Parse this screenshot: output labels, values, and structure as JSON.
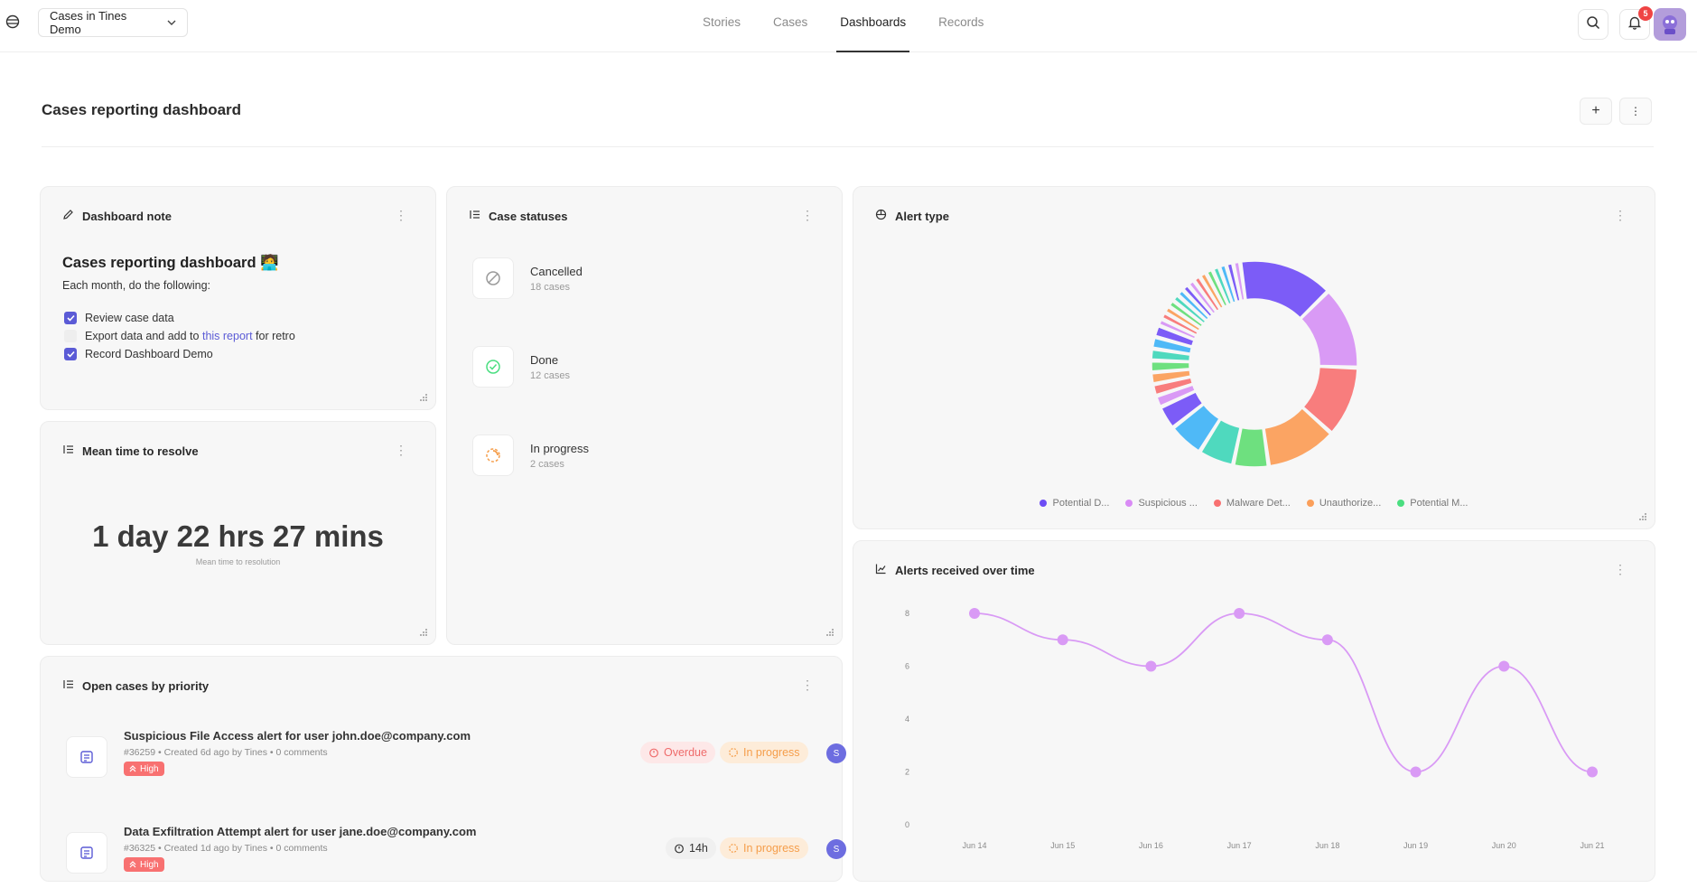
{
  "header": {
    "workspace": "Cases in Tines Demo",
    "nav": [
      "Stories",
      "Cases",
      "Dashboards",
      "Records"
    ],
    "active_nav": "Dashboards",
    "notification_count": "5"
  },
  "page": {
    "title": "Cases reporting dashboard"
  },
  "note_card": {
    "title": "Dashboard note",
    "heading": "Cases reporting dashboard 🧑‍💻",
    "subtitle": "Each month, do the following:",
    "items": [
      {
        "text": "Review case data",
        "checked": true
      },
      {
        "prefix": "Export data and add to ",
        "link": "this report",
        "suffix": " for retro",
        "checked": false
      },
      {
        "text": "Record Dashboard Demo",
        "checked": true
      }
    ]
  },
  "statuses_card": {
    "title": "Case statuses",
    "items": [
      {
        "name": "Cancelled",
        "count": "18 cases",
        "color": "#9a9a9a"
      },
      {
        "name": "Done",
        "count": "12 cases",
        "color": "#4ade80"
      },
      {
        "name": "In progress",
        "count": "2 cases",
        "color": "#f59e4b"
      }
    ]
  },
  "mttr_card": {
    "title": "Mean time to resolve",
    "value": "1 day 22 hrs 27 mins",
    "label": "Mean time to resolution"
  },
  "open_cases_card": {
    "title": "Open cases by priority",
    "cases": [
      {
        "title": "Suspicious File Access alert for user john.doe@company.com",
        "id": "#36259",
        "meta": "Created 6d ago by Tines",
        "comments": "0 comments",
        "priority": "High",
        "pills": [
          "Overdue",
          "In progress"
        ],
        "assignee": "S"
      },
      {
        "title": "Data Exfiltration Attempt alert for user jane.doe@company.com",
        "id": "#36325",
        "meta": "Created 1d ago by Tines",
        "comments": "0 comments",
        "priority": "High",
        "pills": [
          "14h",
          "In progress"
        ],
        "assignee": "S"
      }
    ]
  },
  "alert_type_card": {
    "title": "Alert type",
    "legend": [
      {
        "label": "Potential D...",
        "color": "#6d4df5"
      },
      {
        "label": "Suspicious ...",
        "color": "#d98bf5"
      },
      {
        "label": "Malware Det...",
        "color": "#f87171"
      },
      {
        "label": "Unauthorize...",
        "color": "#fb9f5a"
      },
      {
        "label": "Potential M...",
        "color": "#4ade80"
      }
    ]
  },
  "alerts_over_time_card": {
    "title": "Alerts received over time"
  },
  "chart_data": [
    {
      "type": "pie",
      "title": "Alert type",
      "donut": true,
      "legend_position": "bottom",
      "slices": [
        {
          "label": "Potential D...",
          "value": 8,
          "color": "#7c5cf7"
        },
        {
          "label": "Suspicious ...",
          "value": 7,
          "color": "#d99af5"
        },
        {
          "label": "Malware Det...",
          "value": 6,
          "color": "#f87d7d"
        },
        {
          "label": "Unauthorize...",
          "value": 6,
          "color": "#fba463"
        },
        {
          "label": "Potential M...",
          "value": 3,
          "color": "#6ee07f"
        },
        {
          "label": "",
          "value": 3,
          "color": "#4fd9be"
        },
        {
          "label": "",
          "value": 3,
          "color": "#4fb9f7"
        },
        {
          "label": "",
          "value": 2,
          "color": "#7c5cf7"
        },
        {
          "label": "",
          "value": 1,
          "color": "#d99af5"
        },
        {
          "label": "",
          "value": 1,
          "color": "#f87d7d"
        },
        {
          "label": "",
          "value": 1,
          "color": "#fba463"
        },
        {
          "label": "",
          "value": 1,
          "color": "#6ee07f"
        },
        {
          "label": "",
          "value": 1,
          "color": "#4fd9be"
        },
        {
          "label": "",
          "value": 1,
          "color": "#4fb9f7"
        },
        {
          "label": "",
          "value": 1,
          "color": "#7c5cf7"
        },
        {
          "label": "",
          "value": 0.6,
          "color": "#d99af5"
        },
        {
          "label": "",
          "value": 0.6,
          "color": "#f87d7d"
        },
        {
          "label": "",
          "value": 0.6,
          "color": "#fba463"
        },
        {
          "label": "",
          "value": 0.6,
          "color": "#6ee07f"
        },
        {
          "label": "",
          "value": 0.6,
          "color": "#4fd9be"
        },
        {
          "label": "",
          "value": 0.6,
          "color": "#4fb9f7"
        },
        {
          "label": "",
          "value": 0.6,
          "color": "#7c5cf7"
        },
        {
          "label": "",
          "value": 0.6,
          "color": "#d99af5"
        },
        {
          "label": "",
          "value": 0.6,
          "color": "#f87d7d"
        },
        {
          "label": "",
          "value": 0.6,
          "color": "#fba463"
        },
        {
          "label": "",
          "value": 0.6,
          "color": "#6ee07f"
        },
        {
          "label": "",
          "value": 0.6,
          "color": "#4fd9be"
        },
        {
          "label": "",
          "value": 0.6,
          "color": "#4fb9f7"
        },
        {
          "label": "",
          "value": 0.6,
          "color": "#7c5cf7"
        },
        {
          "label": "",
          "value": 0.6,
          "color": "#d99af5"
        }
      ]
    },
    {
      "type": "line",
      "title": "Alerts received over time",
      "x": [
        "Jun 14",
        "Jun 15",
        "Jun 16",
        "Jun 17",
        "Jun 18",
        "Jun 19",
        "Jun 20",
        "Jun 21"
      ],
      "series": [
        {
          "values": [
            8,
            7,
            6,
            8,
            7,
            2,
            6,
            2
          ],
          "color": "#d99af5"
        }
      ],
      "yticks": [
        0,
        2,
        4,
        6,
        8
      ],
      "ylim": [
        0,
        8
      ],
      "smooth": true,
      "grid": false
    }
  ]
}
